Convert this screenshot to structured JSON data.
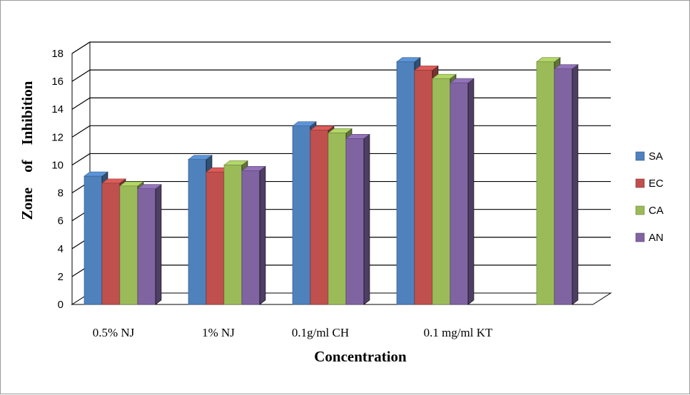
{
  "chart_data": {
    "type": "bar",
    "title": "",
    "xlabel": "Concentration",
    "ylabel": "Zone    of    Inhibition",
    "ylim": [
      0,
      18
    ],
    "yticks": [
      0,
      2,
      4,
      6,
      8,
      10,
      12,
      14,
      16,
      18
    ],
    "grid": true,
    "legend_position": "right",
    "categories": [
      "0.5% NJ",
      "1% NJ",
      "0.1g/ml CH",
      "0.1 mg/ml KT",
      ""
    ],
    "series": [
      {
        "name": "SA",
        "color": "#4f81bd",
        "values": [
          9.2,
          10.4,
          12.8,
          17.4,
          null
        ]
      },
      {
        "name": "EC",
        "color": "#c0504d",
        "values": [
          8.7,
          9.5,
          12.5,
          16.8,
          null
        ]
      },
      {
        "name": "CA",
        "color": "#9bbb59",
        "values": [
          8.5,
          10.0,
          12.3,
          16.2,
          17.4
        ]
      },
      {
        "name": "AN",
        "color": "#8064a2",
        "values": [
          8.3,
          9.6,
          11.9,
          15.9,
          16.9
        ]
      }
    ]
  }
}
